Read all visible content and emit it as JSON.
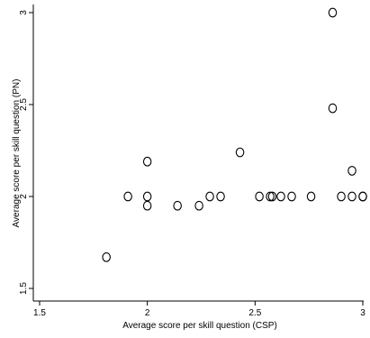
{
  "chart_data": {
    "type": "scatter",
    "title": "",
    "xlabel": "Average score per skill question (CSP)",
    "ylabel": "Average score per skill question (PN)",
    "xlim": [
      1.5,
      3.0
    ],
    "ylim": [
      1.5,
      3.0
    ],
    "x_ticks": [
      1.5,
      2,
      2.5,
      3
    ],
    "x_tick_labels": [
      "1.5",
      "2",
      "2.5",
      "3"
    ],
    "y_ticks": [
      1.5,
      2,
      2.5,
      3
    ],
    "y_tick_labels": [
      "1.5",
      "2",
      "2.5",
      "3"
    ],
    "grid": false,
    "legend": "none",
    "marker": "hollow-circle",
    "points": [
      {
        "x": 1.81,
        "y": 1.67
      },
      {
        "x": 1.91,
        "y": 2.0
      },
      {
        "x": 2.0,
        "y": 2.19
      },
      {
        "x": 2.0,
        "y": 2.0
      },
      {
        "x": 2.0,
        "y": 1.95
      },
      {
        "x": 2.14,
        "y": 1.95
      },
      {
        "x": 2.24,
        "y": 1.95
      },
      {
        "x": 2.29,
        "y": 2.0
      },
      {
        "x": 2.34,
        "y": 2.0
      },
      {
        "x": 2.43,
        "y": 2.24
      },
      {
        "x": 2.52,
        "y": 2.0
      },
      {
        "x": 2.57,
        "y": 2.0
      },
      {
        "x": 2.58,
        "y": 2.0
      },
      {
        "x": 2.62,
        "y": 2.0
      },
      {
        "x": 2.67,
        "y": 2.0
      },
      {
        "x": 2.76,
        "y": 2.0
      },
      {
        "x": 2.86,
        "y": 3.0
      },
      {
        "x": 2.86,
        "y": 2.48
      },
      {
        "x": 2.9,
        "y": 2.0
      },
      {
        "x": 2.95,
        "y": 2.14
      },
      {
        "x": 2.95,
        "y": 2.0
      },
      {
        "x": 3.0,
        "y": 2.0
      },
      {
        "x": 3.0,
        "y": 2.0
      }
    ]
  }
}
